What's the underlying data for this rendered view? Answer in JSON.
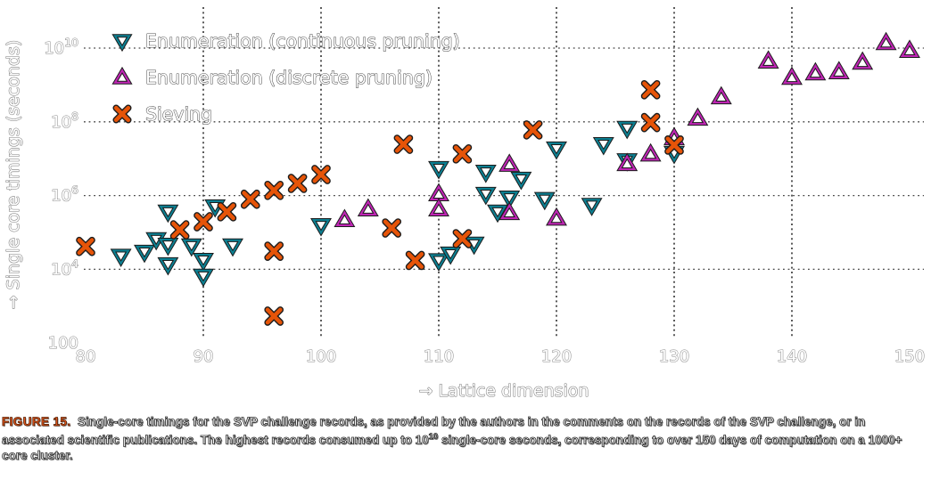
{
  "caption": {
    "label": "FIGURE 15.",
    "text_before_sup": "Single-core timings for the SVP challenge records, as provided by the authors in the comments on the records of the SVP challenge, or in associated scientific publications. The highest records consumed up to 10",
    "sup_exp": "10",
    "text_after_sup": "single-core seconds, corresponding to over 150 days of computation on a 1000+ core cluster."
  },
  "chart_data": {
    "type": "scatter",
    "xlabel": "→ Lattice dimension",
    "ylabel": "→ Single core timings (seconds)",
    "x_axis": {
      "min": 80,
      "max": 150,
      "ticks": [
        80,
        90,
        100,
        110,
        120,
        130,
        140,
        150
      ],
      "gridlines": [
        90,
        100,
        110,
        120,
        130,
        140
      ]
    },
    "y_axis": {
      "scale": "log10",
      "min_exponent": 2,
      "max_exponent": 11,
      "ticks": [
        {
          "base": "10",
          "sup": "10",
          "exponent": 10
        },
        {
          "base": "10",
          "sup": "8",
          "exponent": 8
        },
        {
          "base": "10",
          "sup": "6",
          "exponent": 6
        },
        {
          "base": "10",
          "sup": "4",
          "exponent": 4
        },
        {
          "base": "100",
          "sup": "",
          "exponent": 2
        }
      ],
      "gridline_exponents": [
        4,
        6,
        8,
        10
      ]
    },
    "legend_position": "upper-left",
    "grid": true,
    "y_unit": "points are [lattice_dimension, log10(single-core seconds)]",
    "series": [
      {
        "name": "Enumeration (continuous pruning)",
        "marker": "triangle-down",
        "color": "#0c7f91",
        "points": [
          [
            83,
            4.36
          ],
          [
            85,
            4.47
          ],
          [
            86,
            4.81
          ],
          [
            87,
            5.56
          ],
          [
            87,
            4.66
          ],
          [
            87,
            4.13
          ],
          [
            89,
            4.64
          ],
          [
            90,
            4.25
          ],
          [
            90,
            3.82
          ],
          [
            91,
            5.7
          ],
          [
            92.5,
            4.64
          ],
          [
            100,
            5.19
          ],
          [
            110,
            6.74
          ],
          [
            110,
            4.24
          ],
          [
            111,
            4.42
          ],
          [
            113,
            4.69
          ],
          [
            114,
            6.64
          ],
          [
            114,
            6.04
          ],
          [
            115,
            5.56
          ],
          [
            116,
            5.94
          ],
          [
            117,
            6.45
          ],
          [
            119,
            5.9
          ],
          [
            120,
            7.27
          ],
          [
            123,
            5.74
          ],
          [
            124,
            7.39
          ],
          [
            126,
            7.83
          ],
          [
            126,
            6.95
          ],
          [
            130,
            7.15
          ]
        ]
      },
      {
        "name": "Enumeration (discrete pruning)",
        "marker": "triangle-up",
        "color": "#bf25b4",
        "points": [
          [
            102,
            5.34
          ],
          [
            104,
            5.63
          ],
          [
            110,
            6.04
          ],
          [
            110,
            5.63
          ],
          [
            116,
            6.84
          ],
          [
            116,
            5.53
          ],
          [
            120,
            5.38
          ],
          [
            126,
            6.86
          ],
          [
            128,
            7.12
          ],
          [
            130,
            7.56
          ],
          [
            132,
            8.09
          ],
          [
            134,
            8.67
          ],
          [
            138,
            9.64
          ],
          [
            140,
            9.2
          ],
          [
            142,
            9.32
          ],
          [
            144,
            9.35
          ],
          [
            146,
            9.61
          ],
          [
            148,
            10.14
          ],
          [
            150,
            9.93
          ]
        ]
      },
      {
        "name": "Sieving",
        "marker": "x",
        "color": "#e65408",
        "points": [
          [
            80,
            4.62
          ],
          [
            88,
            5.07
          ],
          [
            90,
            5.29
          ],
          [
            92,
            5.56
          ],
          [
            94,
            5.9
          ],
          [
            96,
            6.14
          ],
          [
            96,
            4.49
          ],
          [
            96,
            2.73
          ],
          [
            98,
            6.33
          ],
          [
            100,
            6.57
          ],
          [
            106,
            5.12
          ],
          [
            107,
            7.39
          ],
          [
            108,
            4.24
          ],
          [
            112,
            7.13
          ],
          [
            112,
            4.83
          ],
          [
            118,
            7.78
          ],
          [
            128,
            8.87
          ],
          [
            128,
            7.98
          ],
          [
            130,
            7.37
          ]
        ]
      }
    ]
  }
}
